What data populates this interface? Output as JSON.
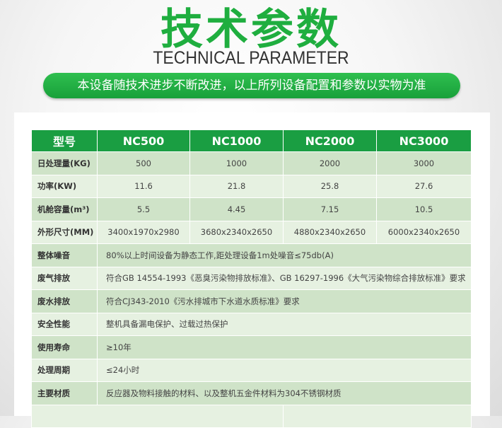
{
  "header": {
    "title": "技术参数",
    "subtitle": "TECHNICAL PARAMETER",
    "notice": "本设备随技术进步不断改进，以上所列设备配置和参数以实物为准"
  },
  "colors": {
    "brand_green": "#1a9e42",
    "row_dark": "#cfe3c8",
    "row_light": "#e6f1e1"
  },
  "table": {
    "columns": [
      "型号",
      "NC500",
      "NC1000",
      "NC2000",
      "NC3000"
    ],
    "spec_rows": [
      {
        "label": "日处理量(KG)",
        "values": [
          "500",
          "1000",
          "2000",
          "3000"
        ]
      },
      {
        "label": "功率(KW)",
        "values": [
          "11.6",
          "21.8",
          "25.8",
          "27.6"
        ]
      },
      {
        "label": "机舱容量(m³)",
        "values": [
          "5.5",
          "4.45",
          "7.15",
          "10.5"
        ]
      },
      {
        "label": "外形尺寸(MM)",
        "values": [
          "3400x1970x2980",
          "3680x2340x2650",
          "4880x2340x2650",
          "6000x2340x2650"
        ]
      }
    ],
    "common_rows": [
      {
        "label": "整体噪音",
        "value": "80%以上时间设备为静态工作,距处理设备1m处噪音≤75db(A)"
      },
      {
        "label": "废气排放",
        "value": "符合GB 14554-1993《恶臭污染物排放标准》、GB 16297-1996《大气污染物综合排放标准》要求"
      },
      {
        "label": "废水排放",
        "value": "符合CJ343-2010《污水排城市下水道水质标准》要求"
      },
      {
        "label": "安全性能",
        "value": "整机具备漏电保护、过载过热保护"
      },
      {
        "label": "使用寿命",
        "value": "≥10年"
      },
      {
        "label": "处理周期",
        "value": "≤24小时"
      },
      {
        "label": "主要材质",
        "value": "反应器及物料接触的材料、以及整机五金件材料为304不锈钢材质"
      }
    ]
  }
}
